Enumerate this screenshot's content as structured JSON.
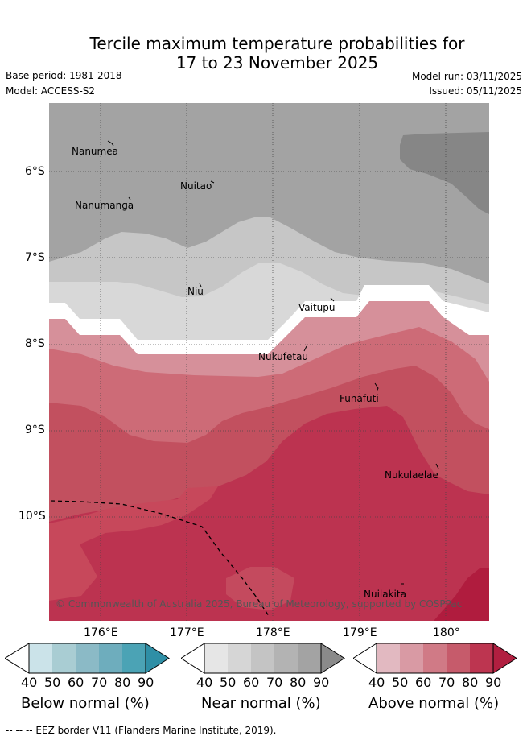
{
  "header": {
    "title_line1": "Tercile maximum temperature probabilities for",
    "title_line2": "17 to 23 November 2025",
    "base_period": "Base period: 1981-2018",
    "model": "Model: ACCESS-S2",
    "model_run": "Model run: 03/11/2025",
    "issued": "Issued: 05/11/2025"
  },
  "map": {
    "lat_ticks": [
      "6°S",
      "7°S",
      "8°S",
      "9°S",
      "10°S"
    ],
    "lon_ticks": [
      "176°E",
      "177°E",
      "178°E",
      "179°E",
      "180°"
    ],
    "places": [
      {
        "name": "Nanumea"
      },
      {
        "name": "Nuitao"
      },
      {
        "name": "Nanumanga"
      },
      {
        "name": "Niu"
      },
      {
        "name": "Vaitupu"
      },
      {
        "name": "Nukufetau"
      },
      {
        "name": "Funafuti"
      },
      {
        "name": "Nukulaelae"
      },
      {
        "name": "Nuilakita"
      }
    ],
    "copyright": "© Commonwealth of Australia 2025, Bureau of Meteorology, supported by COSPPac"
  },
  "colorbars": [
    {
      "label": "Below normal (%)",
      "ticks": [
        "40",
        "50",
        "60",
        "70",
        "80",
        "90"
      ],
      "colors": [
        "#cbe3e9",
        "#a9cdd3",
        "#8bbac6",
        "#6eadbd",
        "#4ba3b5",
        "#2f8fa6"
      ]
    },
    {
      "label": "Near normal (%)",
      "ticks": [
        "40",
        "50",
        "60",
        "70",
        "80",
        "90"
      ],
      "colors": [
        "#e6e6e6",
        "#d6d6d6",
        "#c4c4c4",
        "#b3b3b3",
        "#a3a3a3",
        "#8a8a8a"
      ]
    },
    {
      "label": "Above normal (%)",
      "ticks": [
        "40",
        "50",
        "60",
        "70",
        "80",
        "90"
      ],
      "colors": [
        "#e2b9c1",
        "#d99aa4",
        "#d07a86",
        "#c65b6b",
        "#bd3550",
        "#b11f40"
      ]
    }
  ],
  "footer": {
    "legend_text": "-- -- -- EEZ border V11 (Flanders Marine Institute, 2019)."
  }
}
